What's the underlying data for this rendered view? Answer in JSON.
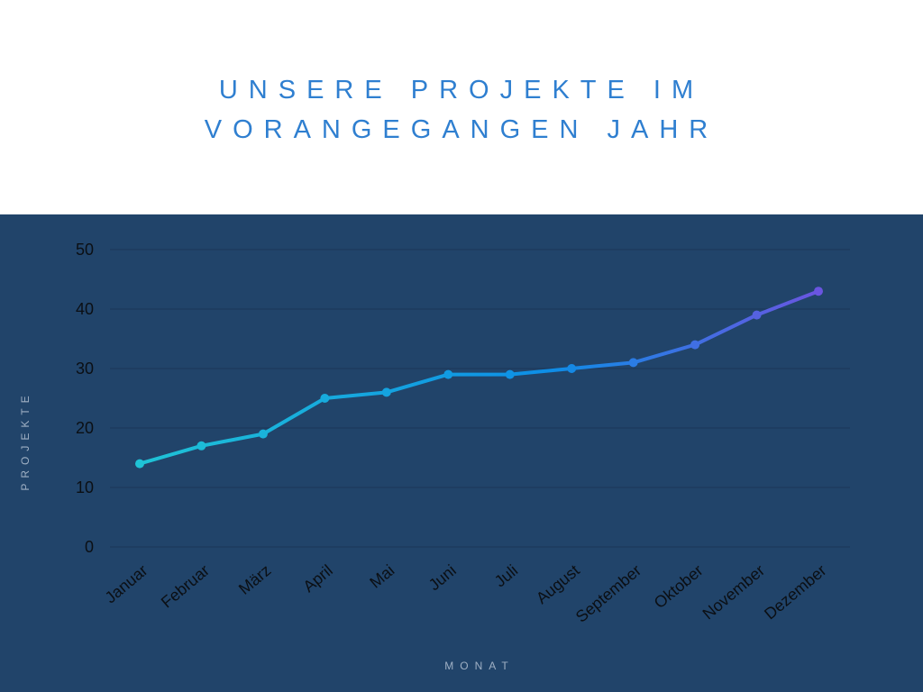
{
  "title": {
    "line1": "UNSERE PROJEKTE IM",
    "line2": "VORANGEGANGEN JAHR"
  },
  "colors": {
    "background_top": "#ffffff",
    "chart_background": "#21446a",
    "title": "#2f7fd0",
    "line_start": "#1fc3d6",
    "line_mid": "#0d8ee6",
    "line_end": "#6a55e0",
    "grid": "#1a3658"
  },
  "chart_data": {
    "type": "line",
    "categories": [
      "Januar",
      "Februar",
      "März",
      "April",
      "Mai",
      "Juni",
      "Juli",
      "August",
      "September",
      "Oktober",
      "November",
      "Dezember"
    ],
    "values": [
      14,
      17,
      19,
      25,
      26,
      29,
      29,
      30,
      31,
      34,
      39,
      43
    ],
    "xlabel": "MONAT",
    "ylabel": "PROJEKTE",
    "ylim": [
      0,
      50
    ],
    "yticks": [
      0,
      10,
      20,
      30,
      40,
      50
    ],
    "grid": true,
    "markers": true
  }
}
